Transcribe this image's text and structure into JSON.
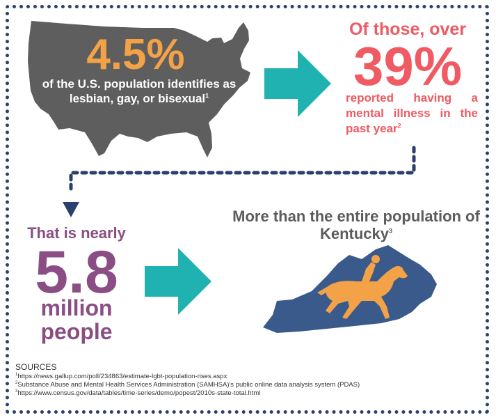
{
  "colors": {
    "orange": "#f3a247",
    "coral": "#ef5a63",
    "purple": "#8a4e84",
    "teal": "#1fb2b0",
    "navy": "#2a3f6b",
    "kentucky_blue": "#3a5a8c",
    "map_gray": "#5e5e5e"
  },
  "icons": {
    "us_map": "us-map-icon",
    "arrow_right": "teal-arrow-icon",
    "arrow_down": "navy-arrow-down-icon",
    "kentucky_map": "kentucky-map-icon",
    "horse_rider": "horse-rider-icon"
  },
  "us_stat": {
    "value": "4.5%",
    "description": "of the U.S. population identifies as lesbian, gay, or bisexual",
    "footnote": "1"
  },
  "mental_stat": {
    "lead": "Of those, over",
    "value": "39%",
    "description": "reported having a mental illness in the past year",
    "footnote": "2"
  },
  "people_stat": {
    "lead": "That is nearly",
    "value": "5.8",
    "unit_line1": "million",
    "unit_line2": "people"
  },
  "kentucky_stat": {
    "text": "More than the entire population of Kentucky",
    "footnote": "3"
  },
  "sources": {
    "heading": "SOURCES",
    "items": [
      {
        "num": "1",
        "text": "https://news.gallup.com/poll/234863/estimate-lgbt-population-rises.aspx"
      },
      {
        "num": "2",
        "text": "Substance Abuse and Mental Health Services Administration (SAMHSA)'s public online data analysis system (PDAS)"
      },
      {
        "num": "3",
        "text": "https://www.census.gov/data/tables/time-series/demo/popest/2010s-state-total.html"
      }
    ]
  }
}
